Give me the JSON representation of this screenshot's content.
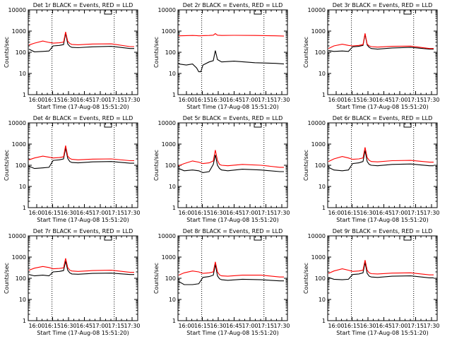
{
  "window": {
    "tick_times": [
      "16:00",
      "16:15",
      "16:30",
      "16:45",
      "17:00",
      "17:15",
      "17:30"
    ],
    "xlabel": "Start Time (17-Aug-08 15:51:20)",
    "ylabel": "Counts/sec",
    "y_ticks": [
      "1",
      "10",
      "100",
      "1000",
      "10000"
    ]
  },
  "chart_data": [
    {
      "type": "line",
      "title": "Det 1r  BLACK = Events, RED = LLD",
      "xlabel": "Start Time (17-Aug-08 15:51:20)",
      "ylabel": "Counts/sec",
      "log_y": true,
      "ylim": [
        1,
        10000
      ],
      "xlim_minutes": [
        -7,
        44
      ],
      "x_minutes": [
        -7,
        -4,
        0,
        3,
        5,
        8,
        10,
        11,
        12,
        13,
        14,
        17,
        24,
        33,
        42,
        44
      ],
      "series": [
        {
          "name": "Events",
          "color": "#000000",
          "values": [
            140,
            105,
            110,
            115,
            200,
            210,
            230,
            800,
            250,
            190,
            170,
            165,
            180,
            190,
            150,
            150
          ]
        },
        {
          "name": "LLD",
          "color": "#ff0000",
          "values": [
            220,
            270,
            340,
            290,
            270,
            280,
            300,
            920,
            330,
            260,
            235,
            225,
            245,
            250,
            185,
            185
          ]
        }
      ],
      "vlines_minutes": [
        4,
        29
      ]
    },
    {
      "type": "line",
      "title": "Det 2r  BLACK = Events, RED = LLD",
      "xlabel": "Start Time (17-Aug-08 15:51:20)",
      "ylabel": "Counts/sec",
      "log_y": true,
      "ylim": [
        1,
        10000
      ],
      "xlim_minutes": [
        -7,
        44
      ],
      "x_minutes": [
        -7,
        -3,
        0,
        2,
        3,
        4,
        5,
        8,
        10,
        11,
        12,
        14,
        20,
        30,
        40,
        44
      ],
      "series": [
        {
          "name": "Events",
          "color": "#000000",
          "values": [
            28,
            25,
            28,
            18,
            12,
            12,
            25,
            35,
            40,
            120,
            45,
            35,
            38,
            32,
            30,
            28
          ]
        },
        {
          "name": "LLD",
          "color": "#ff0000",
          "values": [
            600,
            610,
            620,
            610,
            600,
            600,
            610,
            620,
            640,
            760,
            640,
            620,
            630,
            620,
            600,
            580
          ]
        }
      ],
      "vlines_minutes": [
        4,
        29
      ]
    },
    {
      "type": "line",
      "title": "Det 3r  BLACK = Events, RED = LLD",
      "xlabel": "Start Time (17-Aug-08 15:51:20)",
      "ylabel": "Counts/sec",
      "log_y": true,
      "ylim": [
        1,
        10000
      ],
      "xlim_minutes": [
        -7,
        44
      ],
      "x_minutes": [
        -7,
        -4,
        0,
        3,
        5,
        8,
        10,
        11,
        12,
        13,
        14,
        17,
        24,
        33,
        42,
        44
      ],
      "series": [
        {
          "name": "Events",
          "color": "#000000",
          "values": [
            120,
            110,
            115,
            110,
            180,
            190,
            210,
            700,
            220,
            170,
            150,
            140,
            160,
            170,
            140,
            140
          ]
        },
        {
          "name": "LLD",
          "color": "#ff0000",
          "values": [
            150,
            200,
            240,
            210,
            200,
            210,
            230,
            780,
            240,
            200,
            185,
            175,
            190,
            195,
            150,
            150
          ]
        }
      ],
      "vlines_minutes": [
        4,
        29
      ]
    },
    {
      "type": "line",
      "title": "Det 4r  BLACK = Events, RED = LLD",
      "xlabel": "Start Time (17-Aug-08 15:51:20)",
      "ylabel": "Counts/sec",
      "log_y": true,
      "ylim": [
        1,
        10000
      ],
      "xlim_minutes": [
        -7,
        44
      ],
      "x_minutes": [
        -7,
        -4,
        0,
        3,
        5,
        8,
        10,
        11,
        12,
        13,
        14,
        17,
        24,
        33,
        42,
        44
      ],
      "series": [
        {
          "name": "Events",
          "color": "#000000",
          "values": [
            90,
            70,
            75,
            80,
            170,
            180,
            200,
            650,
            210,
            150,
            135,
            130,
            145,
            150,
            125,
            125
          ]
        },
        {
          "name": "LLD",
          "color": "#ff0000",
          "values": [
            180,
            220,
            270,
            240,
            220,
            230,
            250,
            850,
            270,
            210,
            190,
            180,
            195,
            200,
            165,
            165
          ]
        }
      ],
      "vlines_minutes": [
        4,
        29
      ]
    },
    {
      "type": "line",
      "title": "Det 5r  BLACK = Events, RED = LLD",
      "xlabel": "Start Time (17-Aug-08 15:51:20)",
      "ylabel": "Counts/sec",
      "log_y": true,
      "ylim": [
        1,
        10000
      ],
      "xlim_minutes": [
        -7,
        44
      ],
      "x_minutes": [
        -7,
        -4,
        0,
        3,
        5,
        8,
        10,
        11,
        12,
        13,
        14,
        17,
        24,
        33,
        42,
        44
      ],
      "series": [
        {
          "name": "Events",
          "color": "#000000",
          "values": [
            70,
            55,
            60,
            55,
            45,
            50,
            110,
            310,
            100,
            70,
            60,
            55,
            65,
            60,
            50,
            50
          ]
        },
        {
          "name": "LLD",
          "color": "#ff0000",
          "values": [
            95,
            120,
            160,
            140,
            120,
            130,
            160,
            520,
            170,
            110,
            100,
            95,
            110,
            100,
            80,
            80
          ]
        }
      ],
      "vlines_minutes": [
        4,
        29
      ]
    },
    {
      "type": "line",
      "title": "Det 6r  BLACK = Events, RED = LLD",
      "xlabel": "Start Time (17-Aug-08 15:51:20)",
      "ylabel": "Counts/sec",
      "log_y": true,
      "ylim": [
        1,
        10000
      ],
      "xlim_minutes": [
        -7,
        44
      ],
      "x_minutes": [
        -7,
        -4,
        0,
        3,
        5,
        8,
        10,
        11,
        12,
        13,
        14,
        17,
        24,
        33,
        42,
        44
      ],
      "series": [
        {
          "name": "Events",
          "color": "#000000",
          "values": [
            80,
            60,
            55,
            60,
            120,
            130,
            150,
            500,
            150,
            110,
            100,
            95,
            110,
            115,
            95,
            95
          ]
        },
        {
          "name": "LLD",
          "color": "#ff0000",
          "values": [
            150,
            200,
            260,
            220,
            190,
            200,
            220,
            700,
            230,
            170,
            150,
            145,
            165,
            170,
            140,
            140
          ]
        }
      ],
      "vlines_minutes": [
        4,
        29
      ]
    },
    {
      "type": "line",
      "title": "Det 7r  BLACK = Events, RED = LLD",
      "xlabel": "Start Time (17-Aug-08 15:51:20)",
      "ylabel": "Counts/sec",
      "log_y": true,
      "ylim": [
        1,
        10000
      ],
      "xlim_minutes": [
        -7,
        44
      ],
      "x_minutes": [
        -7,
        -4,
        0,
        3,
        5,
        8,
        10,
        11,
        12,
        13,
        14,
        17,
        24,
        33,
        42,
        44
      ],
      "series": [
        {
          "name": "Events",
          "color": "#000000",
          "values": [
            150,
            130,
            140,
            130,
            200,
            210,
            230,
            650,
            240,
            180,
            160,
            155,
            170,
            175,
            150,
            150
          ]
        },
        {
          "name": "LLD",
          "color": "#ff0000",
          "values": [
            240,
            300,
            360,
            320,
            280,
            290,
            310,
            880,
            320,
            240,
            220,
            210,
            230,
            240,
            190,
            190
          ]
        }
      ],
      "vlines_minutes": [
        4,
        29
      ]
    },
    {
      "type": "line",
      "title": "Det 8r  BLACK = Events, RED = LLD",
      "xlabel": "Start Time (17-Aug-08 15:51:20)",
      "ylabel": "Counts/sec",
      "log_y": true,
      "ylim": [
        1,
        10000
      ],
      "xlim_minutes": [
        -7,
        44
      ],
      "x_minutes": [
        -7,
        -4,
        0,
        3,
        5,
        8,
        10,
        11,
        12,
        13,
        14,
        17,
        24,
        33,
        42,
        44
      ],
      "series": [
        {
          "name": "Events",
          "color": "#000000",
          "values": [
            70,
            50,
            50,
            55,
            110,
            120,
            140,
            450,
            130,
            95,
            85,
            80,
            90,
            85,
            75,
            75
          ]
        },
        {
          "name": "LLD",
          "color": "#ff0000",
          "values": [
            140,
            180,
            220,
            200,
            170,
            180,
            200,
            600,
            200,
            145,
            130,
            125,
            140,
            140,
            115,
            115
          ]
        }
      ],
      "vlines_minutes": [
        4,
        29
      ]
    },
    {
      "type": "line",
      "title": "Det 9r  BLACK = Events, RED = LLD",
      "xlabel": "Start Time (17-Aug-08 15:51:20)",
      "ylabel": "Counts/sec",
      "log_y": true,
      "ylim": [
        1,
        10000
      ],
      "xlim_minutes": [
        -7,
        44
      ],
      "x_minutes": [
        -7,
        -4,
        0,
        3,
        5,
        8,
        10,
        11,
        12,
        13,
        14,
        17,
        24,
        33,
        42,
        44
      ],
      "series": [
        {
          "name": "Events",
          "color": "#000000",
          "values": [
            110,
            90,
            85,
            90,
            150,
            160,
            180,
            560,
            170,
            125,
            115,
            110,
            125,
            130,
            105,
            105
          ]
        },
        {
          "name": "LLD",
          "color": "#ff0000",
          "values": [
            170,
            220,
            280,
            240,
            210,
            220,
            240,
            720,
            240,
            180,
            165,
            160,
            175,
            180,
            145,
            145
          ]
        }
      ],
      "vlines_minutes": [
        4,
        29
      ]
    }
  ]
}
